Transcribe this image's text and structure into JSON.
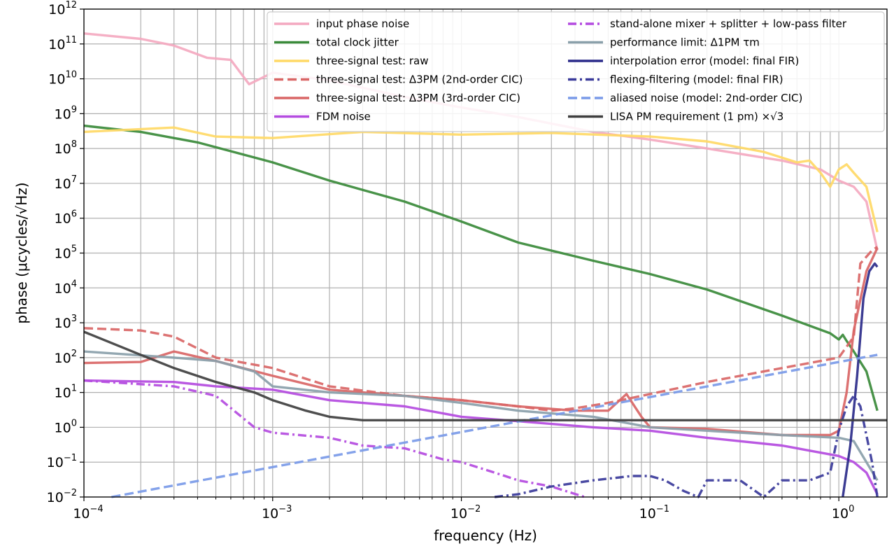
{
  "chart_data": {
    "type": "line",
    "xlabel": "frequency (Hz)",
    "ylabel": "phase (μcycles/√Hz)",
    "xscale": "log",
    "yscale": "log",
    "xlim": [
      0.0001,
      1.8
    ],
    "ylim": [
      0.01,
      1000000000000.0
    ],
    "grid": "x-major-minor, y-major",
    "legend_placement": "top-right",
    "x_ticks": [
      {
        "base": "10",
        "exp": "−4",
        "value": 0.0001
      },
      {
        "base": "10",
        "exp": "−3",
        "value": 0.001
      },
      {
        "base": "10",
        "exp": "−2",
        "value": 0.01
      },
      {
        "base": "10",
        "exp": "−1",
        "value": 0.1
      },
      {
        "base": "10",
        "exp": "0",
        "value": 1
      }
    ],
    "y_ticks": [
      {
        "base": "10",
        "exp": "−2",
        "value": 0.01
      },
      {
        "base": "10",
        "exp": "−1",
        "value": 0.1
      },
      {
        "base": "10",
        "exp": "0",
        "value": 1
      },
      {
        "base": "10",
        "exp": "1",
        "value": 10
      },
      {
        "base": "10",
        "exp": "2",
        "value": 100
      },
      {
        "base": "10",
        "exp": "3",
        "value": 1000
      },
      {
        "base": "10",
        "exp": "4",
        "value": 10000
      },
      {
        "base": "10",
        "exp": "5",
        "value": 100000
      },
      {
        "base": "10",
        "exp": "6",
        "value": 1000000
      },
      {
        "base": "10",
        "exp": "7",
        "value": 10000000
      },
      {
        "base": "10",
        "exp": "8",
        "value": 100000000
      },
      {
        "base": "10",
        "exp": "9",
        "value": 1000000000
      },
      {
        "base": "10",
        "exp": "10",
        "value": 10000000000
      },
      {
        "base": "10",
        "exp": "11",
        "value": 100000000000
      },
      {
        "base": "10",
        "exp": "12",
        "value": 1000000000000
      }
    ],
    "series": [
      {
        "name": "input phase noise",
        "color": "#f4a9c0",
        "dash": "solid",
        "x": [
          0.0001,
          0.0002,
          0.0003,
          0.00045,
          0.0006,
          0.00075,
          0.001,
          0.002,
          0.005,
          0.01,
          0.02,
          0.05,
          0.1,
          0.2,
          0.5,
          0.8,
          1.0,
          1.2,
          1.4,
          1.6
        ],
        "y": [
          200000000000.0,
          140000000000.0,
          90000000000.0,
          40000000000.0,
          35000000000.0,
          7000000000.0,
          15000000000.0,
          9000000000.0,
          3000000000.0,
          1500000000.0,
          800000000.0,
          300000000.0,
          180000000.0,
          100000000.0,
          45000000.0,
          25000000.0,
          12000000.0,
          8000000.0,
          3000000.0,
          120000.0
        ]
      },
      {
        "name": "total clock jitter",
        "color": "#3a8a3a",
        "dash": "solid",
        "x": [
          0.0001,
          0.0002,
          0.0004,
          0.001,
          0.002,
          0.005,
          0.01,
          0.02,
          0.05,
          0.1,
          0.2,
          0.5,
          0.9,
          1.0,
          1.05,
          1.1,
          1.2,
          1.4,
          1.6
        ],
        "y": [
          450000000.0,
          300000000.0,
          150000000.0,
          40000000.0,
          12000000.0,
          3000000.0,
          800000.0,
          200000.0,
          60000.0,
          25000.0,
          9000.0,
          1600.0,
          500,
          330,
          450,
          300,
          150,
          40,
          3
        ]
      },
      {
        "name": "three-signal test: raw",
        "color": "#ffd966",
        "dash": "solid",
        "x": [
          0.0001,
          0.0003,
          0.0005,
          0.001,
          0.003,
          0.01,
          0.03,
          0.1,
          0.2,
          0.4,
          0.6,
          0.7,
          0.8,
          0.9,
          1.0,
          1.1,
          1.2,
          1.4,
          1.6
        ],
        "y": [
          300000000.0,
          400000000.0,
          220000000.0,
          200000000.0,
          300000000.0,
          250000000.0,
          280000000.0,
          220000000.0,
          160000000.0,
          80000000.0,
          40000000.0,
          45000000.0,
          20000000.0,
          8000000.0,
          25000000.0,
          35000000.0,
          20000000.0,
          8000000.0,
          400000.0
        ]
      },
      {
        "name": "three-signal test: Δ3PM (2nd-order CIC)",
        "color": "#d96666",
        "dash": "dashed",
        "x": [
          0.0001,
          0.0002,
          0.0003,
          0.0005,
          0.001,
          0.002,
          0.005,
          0.01,
          0.02,
          0.03,
          0.04,
          0.06,
          0.1,
          0.2,
          0.5,
          1.0,
          1.2,
          1.3,
          1.5,
          1.6
        ],
        "y": [
          700,
          600,
          400,
          100,
          50,
          15,
          8,
          6,
          4,
          3,
          3.5,
          5,
          9,
          20,
          50,
          100,
          400,
          50000.0,
          120000.0,
          150000.0
        ]
      },
      {
        "name": "three-signal test: Δ3PM (3rd-order CIC)",
        "color": "#d96666",
        "dash": "solid",
        "x": [
          0.0001,
          0.0002,
          0.0003,
          0.0005,
          0.001,
          0.002,
          0.005,
          0.01,
          0.02,
          0.04,
          0.06,
          0.075,
          0.09,
          0.1,
          0.2,
          0.5,
          0.9,
          1.0,
          1.1,
          1.2,
          1.4,
          1.6
        ],
        "y": [
          70,
          75,
          150,
          80,
          30,
          12,
          8,
          6,
          4,
          3,
          3,
          9,
          2,
          1,
          0.9,
          0.6,
          0.6,
          0.8,
          10,
          600,
          30000.0,
          140000.0
        ]
      },
      {
        "name": "FDM noise",
        "color": "#b44be0",
        "dash": "solid",
        "x": [
          0.0001,
          0.0003,
          0.0005,
          0.001,
          0.002,
          0.005,
          0.01,
          0.02,
          0.05,
          0.1,
          0.2,
          0.5,
          1.0,
          1.2,
          1.4,
          1.6
        ],
        "y": [
          22,
          20,
          15,
          12,
          6,
          4,
          2,
          1.5,
          1,
          0.8,
          0.5,
          0.3,
          0.15,
          0.1,
          0.05,
          0.012
        ]
      },
      {
        "name": "stand-alone mixer + splitter + low-pass filter",
        "color": "#b44be0",
        "dash": "dashdot",
        "x": [
          0.0001,
          0.0003,
          0.0005,
          0.0008,
          0.001,
          0.002,
          0.003,
          0.005,
          0.008,
          0.01,
          0.015,
          0.02,
          0.03,
          0.045
        ],
        "y": [
          22,
          15,
          8,
          1,
          0.7,
          0.5,
          0.3,
          0.25,
          0.12,
          0.1,
          0.05,
          0.03,
          0.02,
          0.01
        ]
      },
      {
        "name": "performance limit: Δ1PM τm",
        "color": "#8aa0aa",
        "dash": "solid",
        "x": [
          0.0001,
          0.0003,
          0.0005,
          0.0008,
          0.001,
          0.002,
          0.005,
          0.01,
          0.02,
          0.05,
          0.1,
          0.2,
          0.5,
          1.0,
          1.2,
          1.4,
          1.6
        ],
        "y": [
          150,
          100,
          80,
          40,
          15,
          10,
          8,
          5,
          3,
          2,
          1,
          0.8,
          0.6,
          0.5,
          0.4,
          0.1,
          0.03
        ]
      },
      {
        "name": "interpolation error (model: final FIR)",
        "color": "#2b2b8a",
        "dash": "solid",
        "x": [
          1.05,
          1.15,
          1.25,
          1.35,
          1.45,
          1.55,
          1.6
        ],
        "y": [
          0.01,
          0.3,
          30,
          5000,
          30000.0,
          50000.0,
          40000.0
        ]
      },
      {
        "name": "flexing-filtering (model: final FIR)",
        "color": "#3a3a9a",
        "dash": "dashdot",
        "x": [
          0.015,
          0.02,
          0.03,
          0.05,
          0.08,
          0.1,
          0.12,
          0.15,
          0.18,
          0.2,
          0.3,
          0.4,
          0.5,
          0.7,
          0.9,
          1.0,
          1.1,
          1.2,
          1.3,
          1.5,
          1.6
        ],
        "y": [
          0.01,
          0.012,
          0.02,
          0.03,
          0.04,
          0.04,
          0.03,
          0.015,
          0.01,
          0.03,
          0.03,
          0.01,
          0.03,
          0.03,
          0.05,
          0.8,
          4,
          8,
          4,
          0.1,
          0.01
        ]
      },
      {
        "name": "aliased noise (model: 2nd-order CIC)",
        "color": "#7a9ae8",
        "dash": "dashed",
        "x": [
          0.00014,
          1.6
        ],
        "y": [
          0.01,
          120
        ]
      },
      {
        "name": "LISA PM requirement (1 pm) ×√3",
        "color": "#3f3f3f",
        "dash": "solid",
        "x": [
          0.0001,
          0.0002,
          0.0003,
          0.0005,
          0.0008,
          0.001,
          0.0015,
          0.002,
          0.003,
          0.005,
          0.01,
          0.1,
          1.0,
          1.8
        ],
        "y": [
          550,
          120,
          50,
          20,
          10,
          6,
          3,
          2,
          1.6,
          1.6,
          1.6,
          1.6,
          1.6,
          1.6
        ]
      }
    ]
  }
}
